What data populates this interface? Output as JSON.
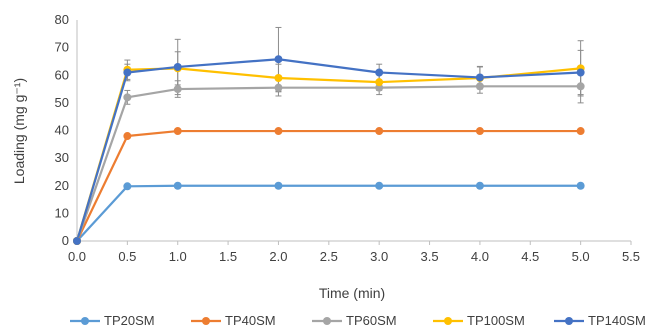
{
  "chart_data": {
    "type": "line",
    "xlabel": "Time (min)",
    "ylabel": "Loading (mg g⁻¹)",
    "xlim": [
      0,
      5.5
    ],
    "ylim": [
      0,
      80
    ],
    "x_ticks": [
      "0.0",
      "0.5",
      "1.0",
      "1.5",
      "2.0",
      "2.5",
      "3.0",
      "3.5",
      "4.0",
      "4.5",
      "5.0",
      "5.5"
    ],
    "y_ticks": [
      "0",
      "10",
      "20",
      "30",
      "40",
      "50",
      "60",
      "70",
      "80"
    ],
    "grid": false,
    "legend_position": "bottom",
    "x": [
      0,
      0.5,
      1,
      2,
      3,
      4,
      5
    ],
    "series": [
      {
        "name": "TP20SM",
        "color": "#5B9BD5",
        "values": [
          0,
          19.8,
          20,
          20,
          20,
          20,
          20
        ],
        "errors": [
          0,
          0,
          0,
          0,
          0,
          0,
          0
        ]
      },
      {
        "name": "TP40SM",
        "color": "#ED7D31",
        "values": [
          0,
          38,
          39.8,
          39.8,
          39.8,
          39.8,
          39.8
        ],
        "errors": [
          0,
          0,
          0,
          0,
          0,
          0,
          0
        ]
      },
      {
        "name": "TP60SM",
        "color": "#A5A5A5",
        "values": [
          0,
          52,
          55,
          55.5,
          55.5,
          56,
          56
        ],
        "errors": [
          0,
          2.5,
          3,
          3,
          2.5,
          2.5,
          6
        ]
      },
      {
        "name": "TP100SM",
        "color": "#FFC000",
        "values": [
          0,
          62,
          62.5,
          59,
          57.5,
          59,
          62.5
        ],
        "errors": [
          0,
          3.5,
          6,
          5,
          3,
          4,
          10
        ]
      },
      {
        "name": "TP140SM",
        "color": "#4472C4",
        "values": [
          0,
          61,
          63,
          65.8,
          61,
          59.2,
          61
        ],
        "errors": [
          0,
          3,
          10,
          11.5,
          3,
          4,
          8
        ]
      }
    ]
  }
}
